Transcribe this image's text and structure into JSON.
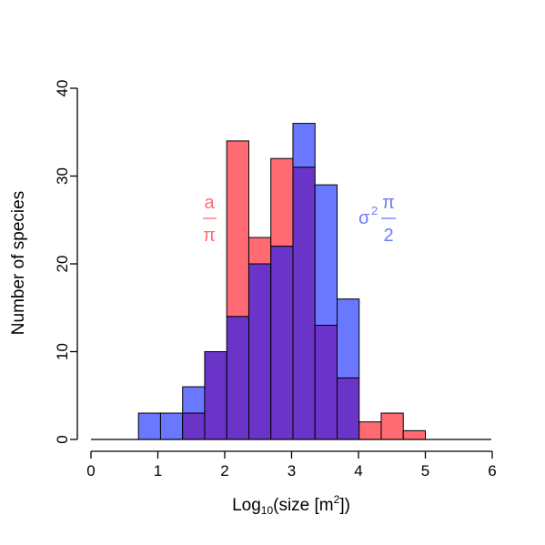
{
  "chart_data": {
    "type": "bar",
    "bin_width": 0.33,
    "bins_start": [
      0.71,
      1.04,
      1.37,
      1.7,
      2.03,
      2.36,
      2.69,
      3.02,
      3.35,
      3.68,
      4.01,
      4.34,
      4.67,
      5.0
    ],
    "series": [
      {
        "color": "#ff6a73",
        "values": [
          0,
          0,
          3,
          10,
          34,
          23,
          32,
          31,
          13,
          7,
          2,
          3,
          1,
          0
        ]
      },
      {
        "color": "#6a78ff",
        "values": [
          3,
          3,
          6,
          10,
          14,
          20,
          22,
          36,
          29,
          16,
          0,
          0,
          0,
          0
        ]
      }
    ],
    "overlap_color": "#6b34c8",
    "xlim": [
      0,
      6
    ],
    "ylim": [
      0,
      40
    ],
    "x_ticks": [
      "0",
      "1",
      "2",
      "3",
      "4",
      "5",
      "6"
    ],
    "y_ticks": [
      "0",
      "10",
      "20",
      "30",
      "40"
    ],
    "xlabel": {
      "prefix": "Log",
      "sub": "10",
      "mid": "(size [m",
      "sup": "2",
      "suffix": "])"
    },
    "ylabel": "Number of species",
    "annotations": {
      "red": {
        "numerator": "a",
        "denominator": "π"
      },
      "blue": {
        "base": "σ",
        "exp": "2",
        "numerator": "π",
        "denominator": "2"
      }
    }
  }
}
